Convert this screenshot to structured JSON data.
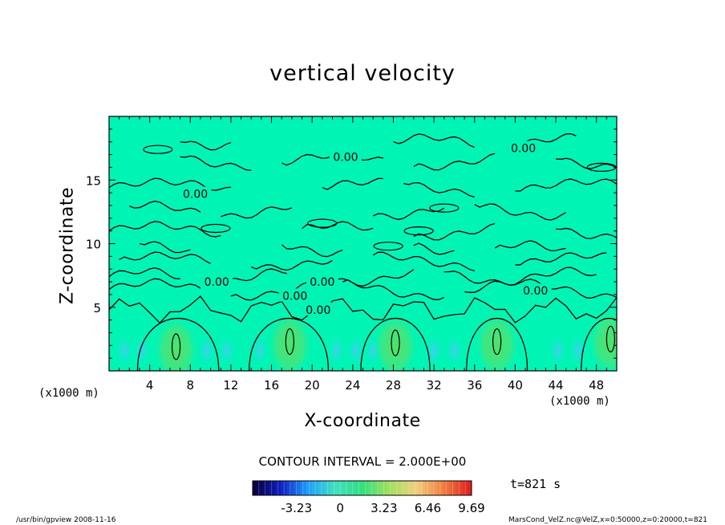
{
  "chart_data": {
    "type": "heatmap",
    "title": "vertical velocity",
    "xlabel": "X-coordinate",
    "ylabel": "Z-coordinate",
    "x_unit": "(x1000 m)",
    "y_unit": "(x1000 m)",
    "xlim": [
      0,
      50
    ],
    "ylim": [
      0,
      20
    ],
    "x_ticks": [
      4,
      8,
      12,
      16,
      20,
      24,
      28,
      32,
      36,
      40,
      44,
      48
    ],
    "y_ticks": [
      5,
      10,
      15
    ],
    "contour_interval_text": "CONTOUR INTERVAL = 2.000E+00",
    "contour_labels": [
      {
        "text": "0.00",
        "x": 23.3,
        "z": 16.8
      },
      {
        "text": "0.00",
        "x": 40.8,
        "z": 17.5
      },
      {
        "text": "0.00",
        "x": 8.5,
        "z": 13.9
      },
      {
        "text": "0.00",
        "x": 10.6,
        "z": 7.0
      },
      {
        "text": "0.00",
        "x": 21.0,
        "z": 7.0
      },
      {
        "text": "0.00",
        "x": 18.3,
        "z": 5.9
      },
      {
        "text": "0.00",
        "x": 20.6,
        "z": 4.8
      },
      {
        "text": "0.00",
        "x": 42.0,
        "z": 6.3
      }
    ],
    "updraft_centers": [
      {
        "x": 6.6,
        "z": 1.9
      },
      {
        "x": 17.8,
        "z": 2.3
      },
      {
        "x": 28.2,
        "z": 2.2
      },
      {
        "x": 38.2,
        "z": 2.3
      },
      {
        "x": 49.4,
        "z": 2.5
      }
    ],
    "colorbar": {
      "tick_labels": [
        "-3.23",
        "0",
        "3.23",
        "6.46",
        "9.69"
      ],
      "min": -6.46,
      "max": 9.69,
      "colors": [
        "#080040",
        "#1020c0",
        "#20a0ff",
        "#40e0c0",
        "#30e080",
        "#a0e060",
        "#f0d080",
        "#f08040",
        "#e02020"
      ]
    },
    "background_color": "#00f5b5",
    "time_label": "t=821 s",
    "footer_left": "/usr/bin/gpview   2008-11-16",
    "footer_right": "MarsCond_VelZ.nc@VelZ,x=0:50000,z=0:20000,t=821"
  }
}
